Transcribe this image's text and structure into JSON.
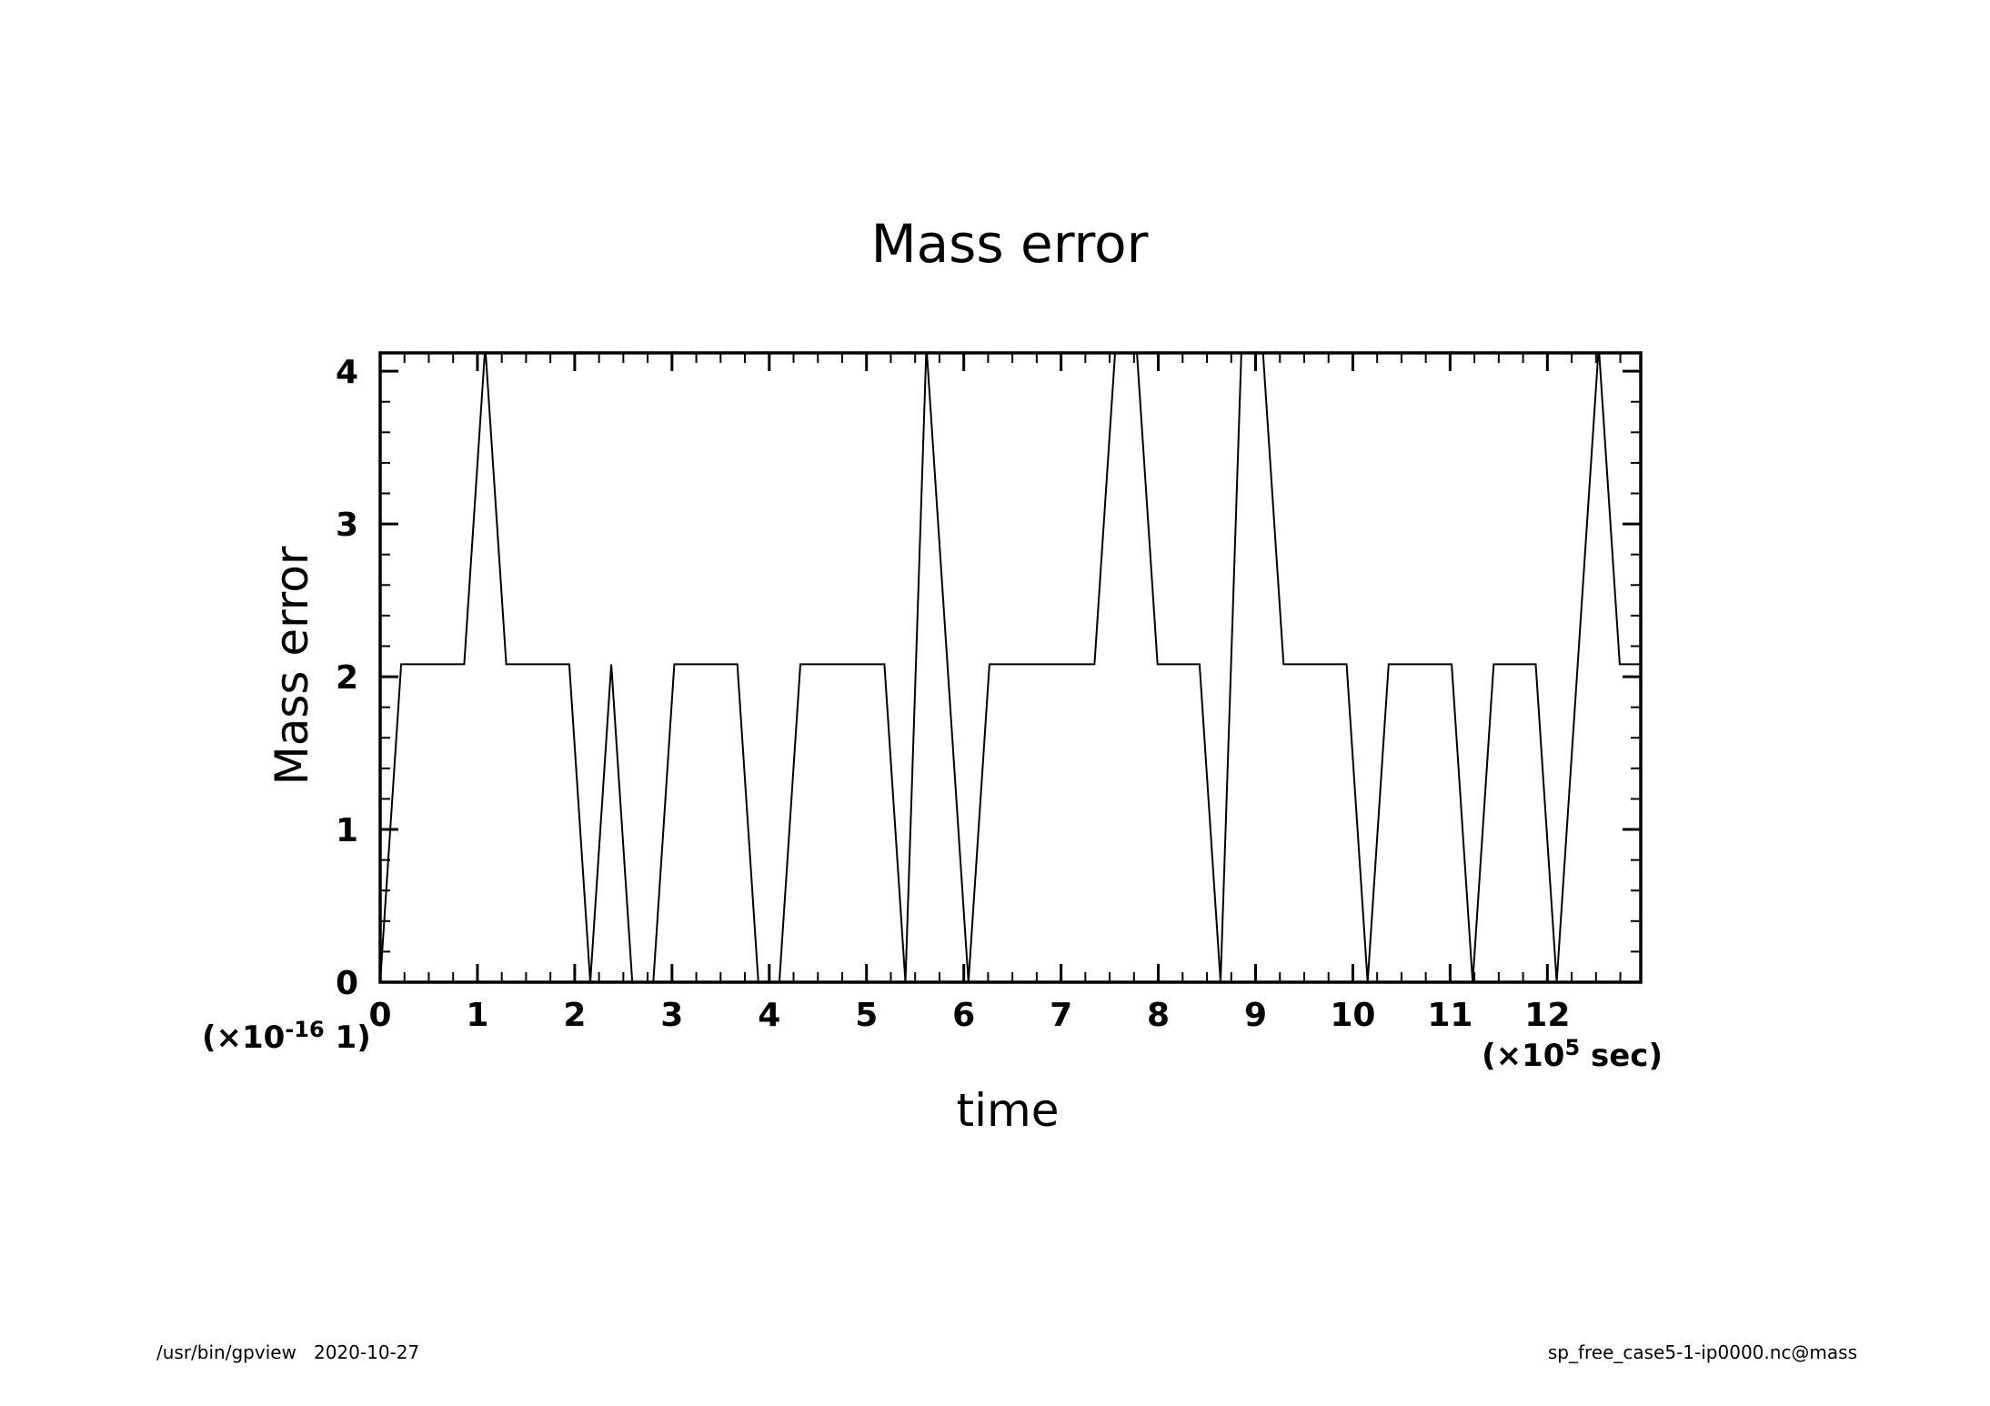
{
  "chart_data": {
    "type": "line",
    "title": "Mass error",
    "xlabel": "time",
    "ylabel": "Mass error",
    "x_multiplier": {
      "prefix": "(×10",
      "exponent": "5",
      "suffix": " sec)"
    },
    "y_multiplier": {
      "prefix": "(×10",
      "exponent": "-16",
      "suffix": " 1)"
    },
    "xlim": [
      0,
      12.96
    ],
    "ylim": [
      0,
      4.12
    ],
    "x_ticks": [
      "0",
      "1",
      "2",
      "3",
      "4",
      "5",
      "6",
      "7",
      "8",
      "9",
      "10",
      "11",
      "12"
    ],
    "y_ticks": [
      "0",
      "1",
      "2",
      "3",
      "4"
    ],
    "grid": false,
    "series": [
      {
        "color": "#000000",
        "x": [
          0,
          0.216,
          0.864,
          1.08,
          1.296,
          1.944,
          2.16,
          2.376,
          2.592,
          2.808,
          3.024,
          3.672,
          3.888,
          4.104,
          4.32,
          5.184,
          5.4,
          5.616,
          5.832,
          6.048,
          6.264,
          7.344,
          7.56,
          7.776,
          7.992,
          8.424,
          8.64,
          8.856,
          9.072,
          9.288,
          9.936,
          10.152,
          10.368,
          11.016,
          11.232,
          11.448,
          11.88,
          12.096,
          12.312,
          12.528,
          12.744,
          12.96
        ],
        "y": [
          0,
          2.0817,
          2.0817,
          4.1633,
          2.0817,
          2.0817,
          0,
          2.0817,
          0,
          0,
          2.0817,
          2.0817,
          0,
          0,
          2.0817,
          2.0817,
          0,
          4.1633,
          2.0817,
          0,
          2.0817,
          2.0817,
          4.1633,
          4.1633,
          2.0817,
          2.0817,
          0,
          4.1633,
          4.1633,
          2.0817,
          2.0817,
          0,
          2.0817,
          2.0817,
          0,
          2.0817,
          2.0817,
          0,
          2.0817,
          4.1633,
          2.0817,
          2.0817
        ]
      }
    ]
  },
  "footer": {
    "left": "/usr/bin/gpview   2020-10-27",
    "right": "sp_free_case5-1-ip0000.nc@mass"
  }
}
